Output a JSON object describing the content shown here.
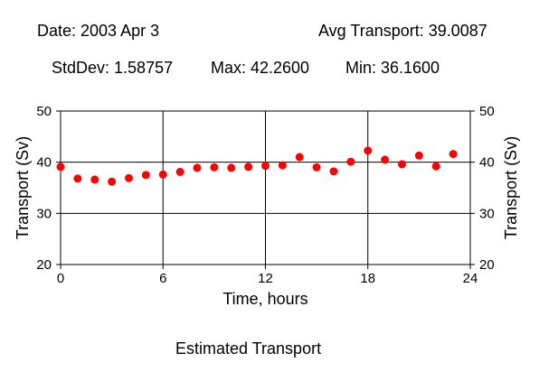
{
  "header": {
    "date": "Date: 2003 Apr 3",
    "avg": "Avg Transport: 39.0087",
    "stddev": "StdDev: 1.58757",
    "max": "Max: 42.2600",
    "min": "Min: 36.1600"
  },
  "caption": "Estimated Transport",
  "chart_data": {
    "type": "scatter",
    "xlabel": "Time, hours",
    "ylabel": "Transport (Sv)",
    "xlim": [
      0,
      24
    ],
    "ylim": [
      20,
      50
    ],
    "xticks": [
      0,
      6,
      12,
      18,
      24
    ],
    "yticks": [
      20,
      30,
      40,
      50
    ],
    "x_tick_labels": [
      "0",
      "6",
      "12",
      "18",
      "24"
    ],
    "y_tick_labels": [
      "20",
      "30",
      "40",
      "50"
    ],
    "grid": true,
    "marker_color": "#ff0000",
    "x": [
      0,
      1,
      2,
      3,
      4,
      5,
      6,
      7,
      8,
      9,
      10,
      11,
      12,
      13,
      14,
      15,
      16,
      17,
      18,
      19,
      20,
      21,
      22,
      23
    ],
    "values": [
      39.1,
      36.8,
      36.6,
      36.2,
      36.9,
      37.5,
      37.6,
      38.1,
      38.9,
      39.0,
      38.9,
      39.1,
      39.3,
      39.4,
      41.0,
      39.0,
      38.2,
      40.1,
      42.26,
      40.5,
      39.6,
      41.3,
      39.2,
      41.6
    ]
  }
}
